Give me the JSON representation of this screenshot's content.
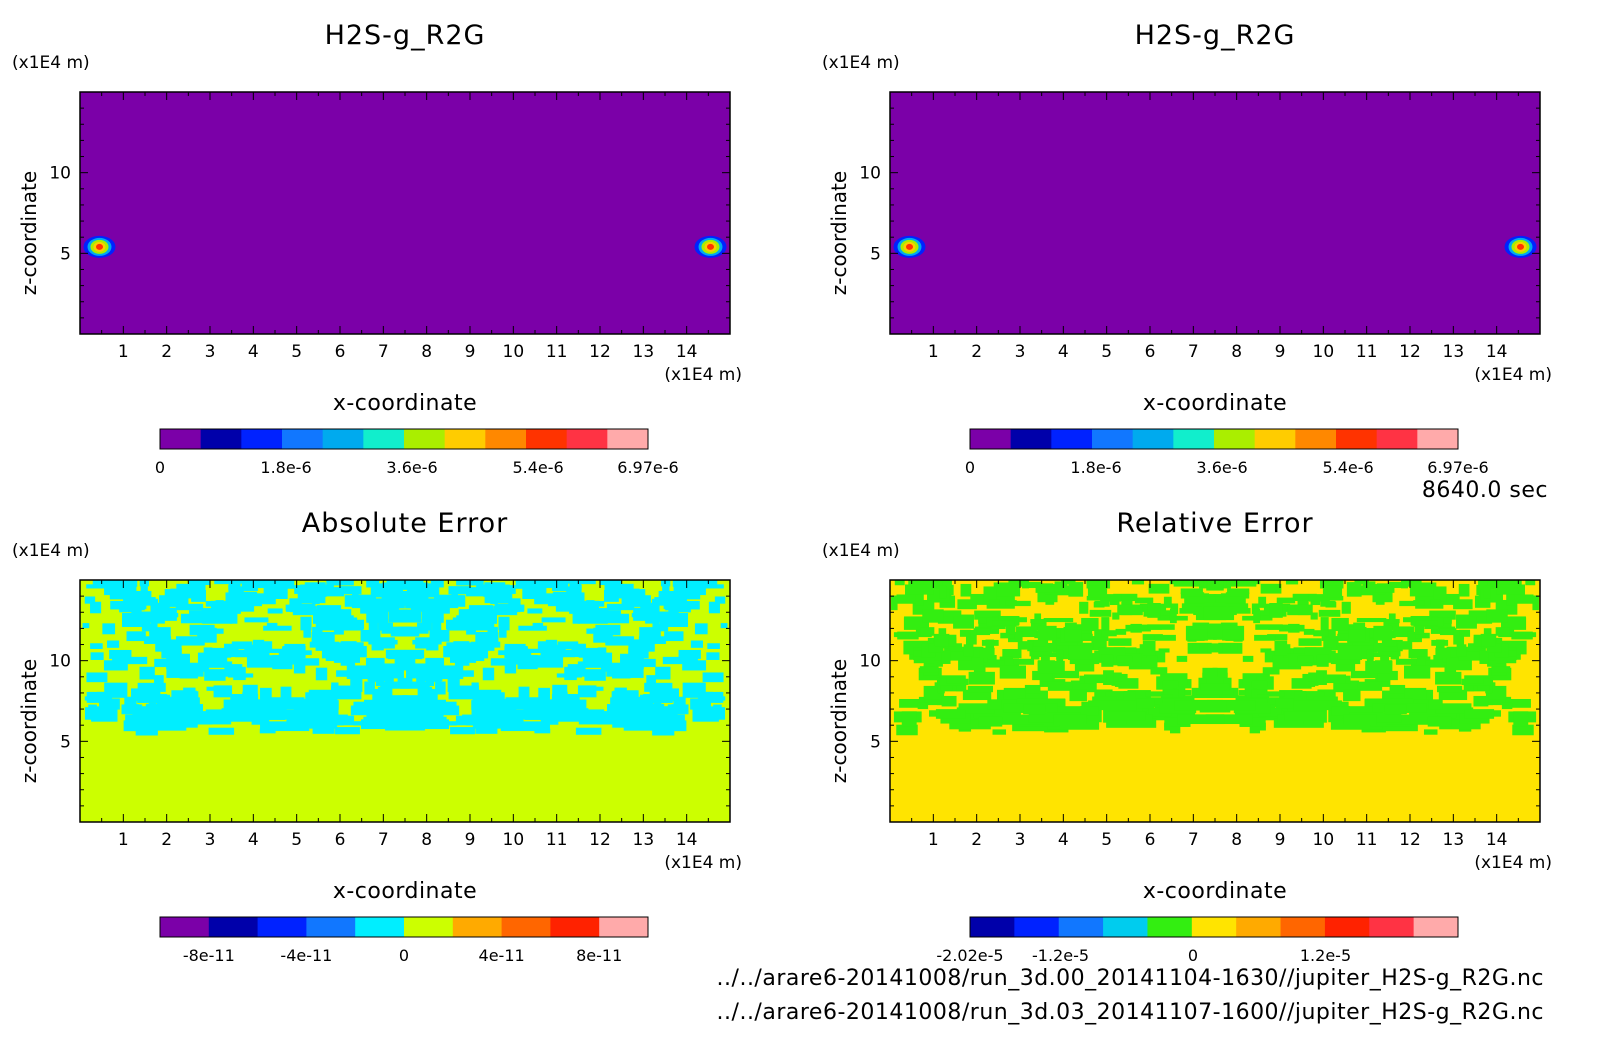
{
  "figure": {
    "time_label": "8640.0 sec",
    "footer_paths": [
      "../../arare6-20141008/run_3d.00_20141104-1630//jupiter_H2S-g_R2G.nc",
      "../../arare6-20141008/run_3d.03_20141107-1600//jupiter_H2S-g_R2G.nc"
    ]
  },
  "chart_data": [
    {
      "type": "heatmap",
      "title": "H2S-g_R2G",
      "xlabel": "x-coordinate",
      "ylabel": "z-coordinate",
      "x_unit": "(x1E4 m)",
      "y_unit": "(x1E4 m)",
      "xlim": [
        0,
        15
      ],
      "ylim": [
        0,
        15
      ],
      "x_ticks": [
        1,
        2,
        3,
        4,
        5,
        6,
        7,
        8,
        9,
        10,
        11,
        12,
        13,
        14
      ],
      "y_ticks": [
        5,
        10
      ],
      "background": "#7b00a8",
      "features": [
        {
          "x": 0.45,
          "z": 5.4,
          "value": 6.97e-06
        },
        {
          "x": 14.55,
          "z": 5.4,
          "value": 6.97e-06
        }
      ],
      "colorbar": {
        "colors": [
          "#7b00a8",
          "#0000aa",
          "#0022ff",
          "#1177ff",
          "#00aaee",
          "#11eecc",
          "#aaee00",
          "#ffcc00",
          "#ff8800",
          "#ff3300",
          "#ff3344",
          "#ffaaaa"
        ],
        "tick_labels": [
          "0",
          "1.8e-6",
          "3.6e-6",
          "5.4e-6",
          "6.97e-6"
        ],
        "tick_values": [
          0,
          1.8e-06,
          3.6e-06,
          5.4e-06,
          6.97e-06
        ],
        "vmin": 0,
        "vmax": 6.97e-06
      }
    },
    {
      "type": "heatmap",
      "title": "H2S-g_R2G",
      "xlabel": "x-coordinate",
      "ylabel": "z-coordinate",
      "x_unit": "(x1E4 m)",
      "y_unit": "(x1E4 m)",
      "xlim": [
        0,
        15
      ],
      "ylim": [
        0,
        15
      ],
      "x_ticks": [
        1,
        2,
        3,
        4,
        5,
        6,
        7,
        8,
        9,
        10,
        11,
        12,
        13,
        14
      ],
      "y_ticks": [
        5,
        10
      ],
      "background": "#7b00a8",
      "features": [
        {
          "x": 0.45,
          "z": 5.4,
          "value": 6.97e-06
        },
        {
          "x": 14.55,
          "z": 5.4,
          "value": 6.97e-06
        }
      ],
      "colorbar": {
        "colors": [
          "#7b00a8",
          "#0000aa",
          "#0022ff",
          "#1177ff",
          "#00aaee",
          "#11eecc",
          "#aaee00",
          "#ffcc00",
          "#ff8800",
          "#ff3300",
          "#ff3344",
          "#ffaaaa"
        ],
        "tick_labels": [
          "0",
          "1.8e-6",
          "3.6e-6",
          "5.4e-6",
          "6.97e-6"
        ],
        "tick_values": [
          0,
          1.8e-06,
          3.6e-06,
          5.4e-06,
          6.97e-06
        ],
        "vmin": 0,
        "vmax": 6.97e-06
      }
    },
    {
      "type": "heatmap",
      "title": "Absolute Error",
      "xlabel": "x-coordinate",
      "ylabel": "z-coordinate",
      "x_unit": "(x1E4 m)",
      "y_unit": "(x1E4 m)",
      "xlim": [
        0,
        15
      ],
      "ylim": [
        0,
        15
      ],
      "x_ticks": [
        1,
        2,
        3,
        4,
        5,
        6,
        7,
        8,
        9,
        10,
        11,
        12,
        13,
        14
      ],
      "y_ticks": [
        5,
        10
      ],
      "background": "#ccff00",
      "patch_color": "#00eeff",
      "patch_region_z": [
        5.3,
        14.8
      ],
      "colorbar": {
        "colors": [
          "#7b00a8",
          "#0000aa",
          "#0022ff",
          "#1177ff",
          "#00eeff",
          "#ccff00",
          "#ffaa00",
          "#ff6600",
          "#ff2200",
          "#ffaaaa"
        ],
        "tick_labels": [
          "-8e-11",
          "-4e-11",
          "0",
          "4e-11",
          "8e-11"
        ],
        "tick_values": [
          -8e-11,
          -4e-11,
          0,
          4e-11,
          8e-11
        ],
        "vmin": -1e-10,
        "vmax": 1e-10
      }
    },
    {
      "type": "heatmap",
      "title": "Relative Error",
      "xlabel": "x-coordinate",
      "ylabel": "z-coordinate",
      "x_unit": "(x1E4 m)",
      "y_unit": "(x1E4 m)",
      "xlim": [
        0,
        15
      ],
      "ylim": [
        0,
        15
      ],
      "x_ticks": [
        1,
        2,
        3,
        4,
        5,
        6,
        7,
        8,
        9,
        10,
        11,
        12,
        13,
        14
      ],
      "y_ticks": [
        5,
        10
      ],
      "background": "#ffe400",
      "patch_color": "#33ee11",
      "patch_region_z": [
        5.3,
        14.8
      ],
      "colorbar": {
        "colors": [
          "#0000aa",
          "#0022ff",
          "#1177ff",
          "#00ccee",
          "#33ee11",
          "#ffe400",
          "#ffaa00",
          "#ff6600",
          "#ff2200",
          "#ff3344",
          "#ffaaaa"
        ],
        "tick_labels": [
          "-2.02e-5",
          "-1.2e-5",
          "0",
          "1.2e-5"
        ],
        "tick_values": [
          -2.02e-05,
          -1.2e-05,
          0,
          1.2e-05
        ],
        "vmin": -2.02e-05,
        "vmax": 2.4e-05
      }
    }
  ]
}
